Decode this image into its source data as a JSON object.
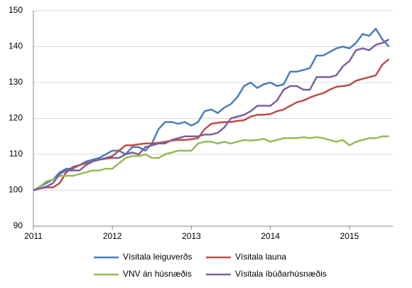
{
  "chart_data": {
    "type": "line",
    "categories": [
      "2011",
      null,
      null,
      null,
      null,
      null,
      null,
      null,
      null,
      null,
      null,
      null,
      "2012",
      null,
      null,
      null,
      null,
      null,
      null,
      null,
      null,
      null,
      null,
      null,
      "2013",
      null,
      null,
      null,
      null,
      null,
      null,
      null,
      null,
      null,
      null,
      null,
      "2014",
      null,
      null,
      null,
      null,
      null,
      null,
      null,
      null,
      null,
      null,
      null,
      "2015",
      null,
      null,
      null,
      null,
      null,
      null
    ],
    "series": [
      {
        "name": "Vísitala leiguverðs",
        "color": "#4a7ebb",
        "values": [
          100,
          101,
          102,
          103,
          105,
          106,
          106,
          107,
          108,
          108.5,
          109,
          110,
          111,
          111,
          110,
          112,
          112,
          111,
          113,
          117,
          119,
          119,
          118.5,
          119,
          118,
          119,
          122,
          122.5,
          121.5,
          123,
          124,
          126,
          129,
          130,
          128.5,
          129.5,
          130,
          129,
          129.5,
          133,
          133,
          133.5,
          134,
          137.5,
          137.5,
          138.5,
          139.5,
          140,
          139.5,
          141,
          143.5,
          143,
          145,
          142,
          140
        ]
      },
      {
        "name": "Vísitala launa",
        "color": "#be4b48",
        "values": [
          100,
          100.5,
          100.8,
          100.8,
          102,
          105,
          106.5,
          107,
          107.5,
          108,
          108.5,
          109,
          109.5,
          111,
          112.5,
          112.5,
          112.8,
          113,
          113,
          113.2,
          113.5,
          113.8,
          114,
          114,
          114.2,
          114.5,
          117,
          118.5,
          118.8,
          119,
          119,
          119.3,
          119.5,
          120.5,
          121,
          121,
          121.2,
          122,
          122.5,
          123.5,
          124.5,
          125,
          125.8,
          126.5,
          127,
          128,
          128.8,
          129,
          129.3,
          130.5,
          131,
          131.5,
          132,
          135,
          136.5
        ]
      },
      {
        "name": "VNV án húsnæðis",
        "color": "#98b954",
        "values": [
          100,
          101,
          102.5,
          103,
          104,
          104,
          104,
          104.5,
          105,
          105.5,
          105.5,
          106,
          106,
          107.5,
          109,
          109.5,
          109.5,
          110,
          109,
          109,
          110,
          110.5,
          111,
          111,
          111,
          113,
          113.5,
          113.5,
          113,
          113.5,
          113,
          113.5,
          114,
          113.8,
          114,
          114.3,
          113.5,
          114,
          114.5,
          114.5,
          114.5,
          114.8,
          114.5,
          114.8,
          114.5,
          114,
          113.5,
          114,
          112.5,
          113.5,
          114,
          114.5,
          114.5,
          115,
          115
        ]
      },
      {
        "name": "Vísitala íbúðarhúsnæðis",
        "color": "#7d60a0",
        "values": [
          100,
          100.5,
          101,
          102,
          104.5,
          105.5,
          105.5,
          105.5,
          107,
          108,
          108.5,
          108.8,
          109,
          109,
          110,
          110.5,
          110,
          112,
          112.5,
          113,
          113,
          114,
          114.5,
          115,
          115,
          115,
          115.5,
          115.5,
          116,
          117.5,
          120,
          120.5,
          121,
          122,
          123.5,
          123.5,
          123.5,
          125,
          128,
          129,
          129,
          128,
          128,
          131.5,
          131.5,
          131.5,
          132,
          134.5,
          136,
          139,
          139.5,
          139,
          140.5,
          141,
          142
        ]
      }
    ],
    "ylim": [
      90,
      150
    ],
    "yticks": [
      90,
      100,
      110,
      120,
      130,
      140,
      150
    ],
    "grid": true
  }
}
